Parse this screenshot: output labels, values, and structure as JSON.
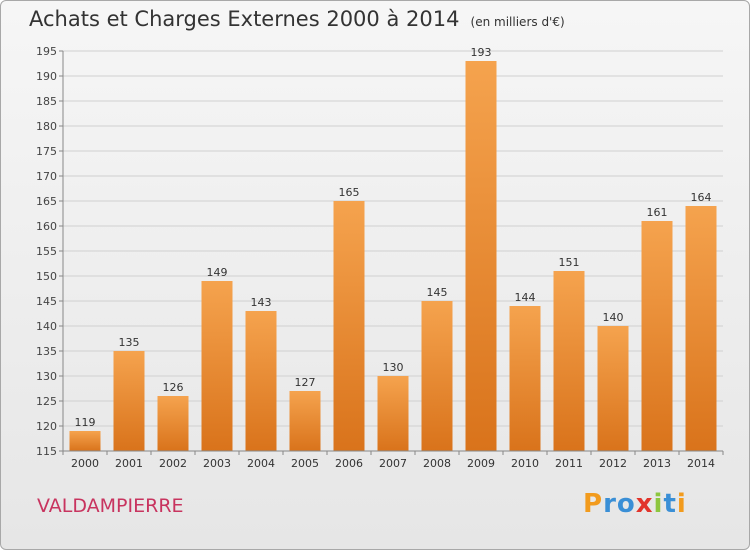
{
  "title": "Achats et Charges Externes 2000 à 2014",
  "subtitle": "(en milliers d'€)",
  "place": "VALDAMPIERRE",
  "logo": {
    "text": "Proxiti",
    "colors": [
      "#f29b1d",
      "#3a8fd6",
      "#3a8fd6",
      "#e2342b",
      "#8dc63f",
      "#3a8fd6",
      "#f29b1d"
    ]
  },
  "colors": {
    "bar_top": "#f5a34e",
    "bar_bottom": "#d9731b",
    "grid": "#d0d0d0",
    "place": "#c8345f"
  },
  "chart_data": {
    "type": "bar",
    "categories": [
      "2000",
      "2001",
      "2002",
      "2003",
      "2004",
      "2005",
      "2006",
      "2007",
      "2008",
      "2009",
      "2010",
      "2011",
      "2012",
      "2013",
      "2014"
    ],
    "values": [
      119,
      135,
      126,
      149,
      143,
      127,
      165,
      130,
      145,
      193,
      144,
      151,
      140,
      161,
      164
    ],
    "title": "Achats et Charges Externes 2000 à 2014",
    "subtitle": "(en milliers d'€)",
    "ylim": [
      115,
      195
    ],
    "yticks": [
      115,
      120,
      125,
      130,
      135,
      140,
      145,
      150,
      155,
      160,
      165,
      170,
      175,
      180,
      185,
      190,
      195
    ],
    "grid": true,
    "data_labels": true
  }
}
